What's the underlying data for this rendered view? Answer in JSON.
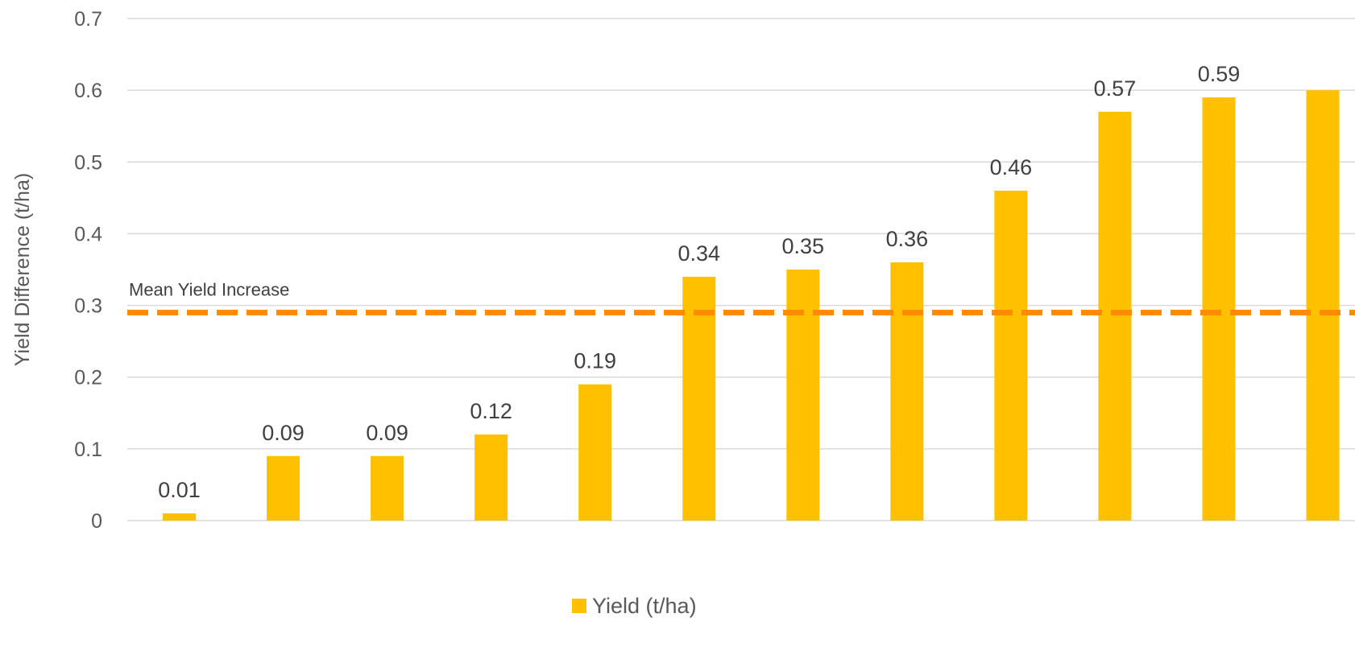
{
  "chart_data": {
    "type": "bar",
    "categories": [
      "",
      "",
      "",
      "",
      "",
      "",
      "",
      "",
      "",
      "",
      "",
      ""
    ],
    "series": [
      {
        "name": "Yield (t/ha)",
        "values": [
          0.01,
          0.09,
          0.09,
          0.12,
          0.19,
          0.34,
          0.35,
          0.36,
          0.46,
          0.57,
          0.59,
          0.6
        ],
        "color": "#FFC000"
      }
    ],
    "data_labels": [
      "0.01",
      "0.09",
      "0.09",
      "0.12",
      "0.19",
      "0.34",
      "0.35",
      "0.36",
      "0.46",
      "0.57",
      "0.59",
      ""
    ],
    "title": "",
    "xlabel": "",
    "ylabel": "Yield Difference (t/ha)",
    "ylim": [
      0,
      0.7
    ],
    "yticks": [
      0,
      0.1,
      0.2,
      0.3,
      0.4,
      0.5,
      0.6,
      0.7
    ],
    "ytick_labels": [
      "0",
      "0.1",
      "0.2",
      "0.3",
      "0.4",
      "0.5",
      "0.6",
      "0.7"
    ],
    "grid": "horizontal",
    "legend": "bottom",
    "reference_line": {
      "label": "Mean Yield Increase",
      "value": 0.29,
      "color": "#FF8C00",
      "style": "dashed"
    }
  }
}
